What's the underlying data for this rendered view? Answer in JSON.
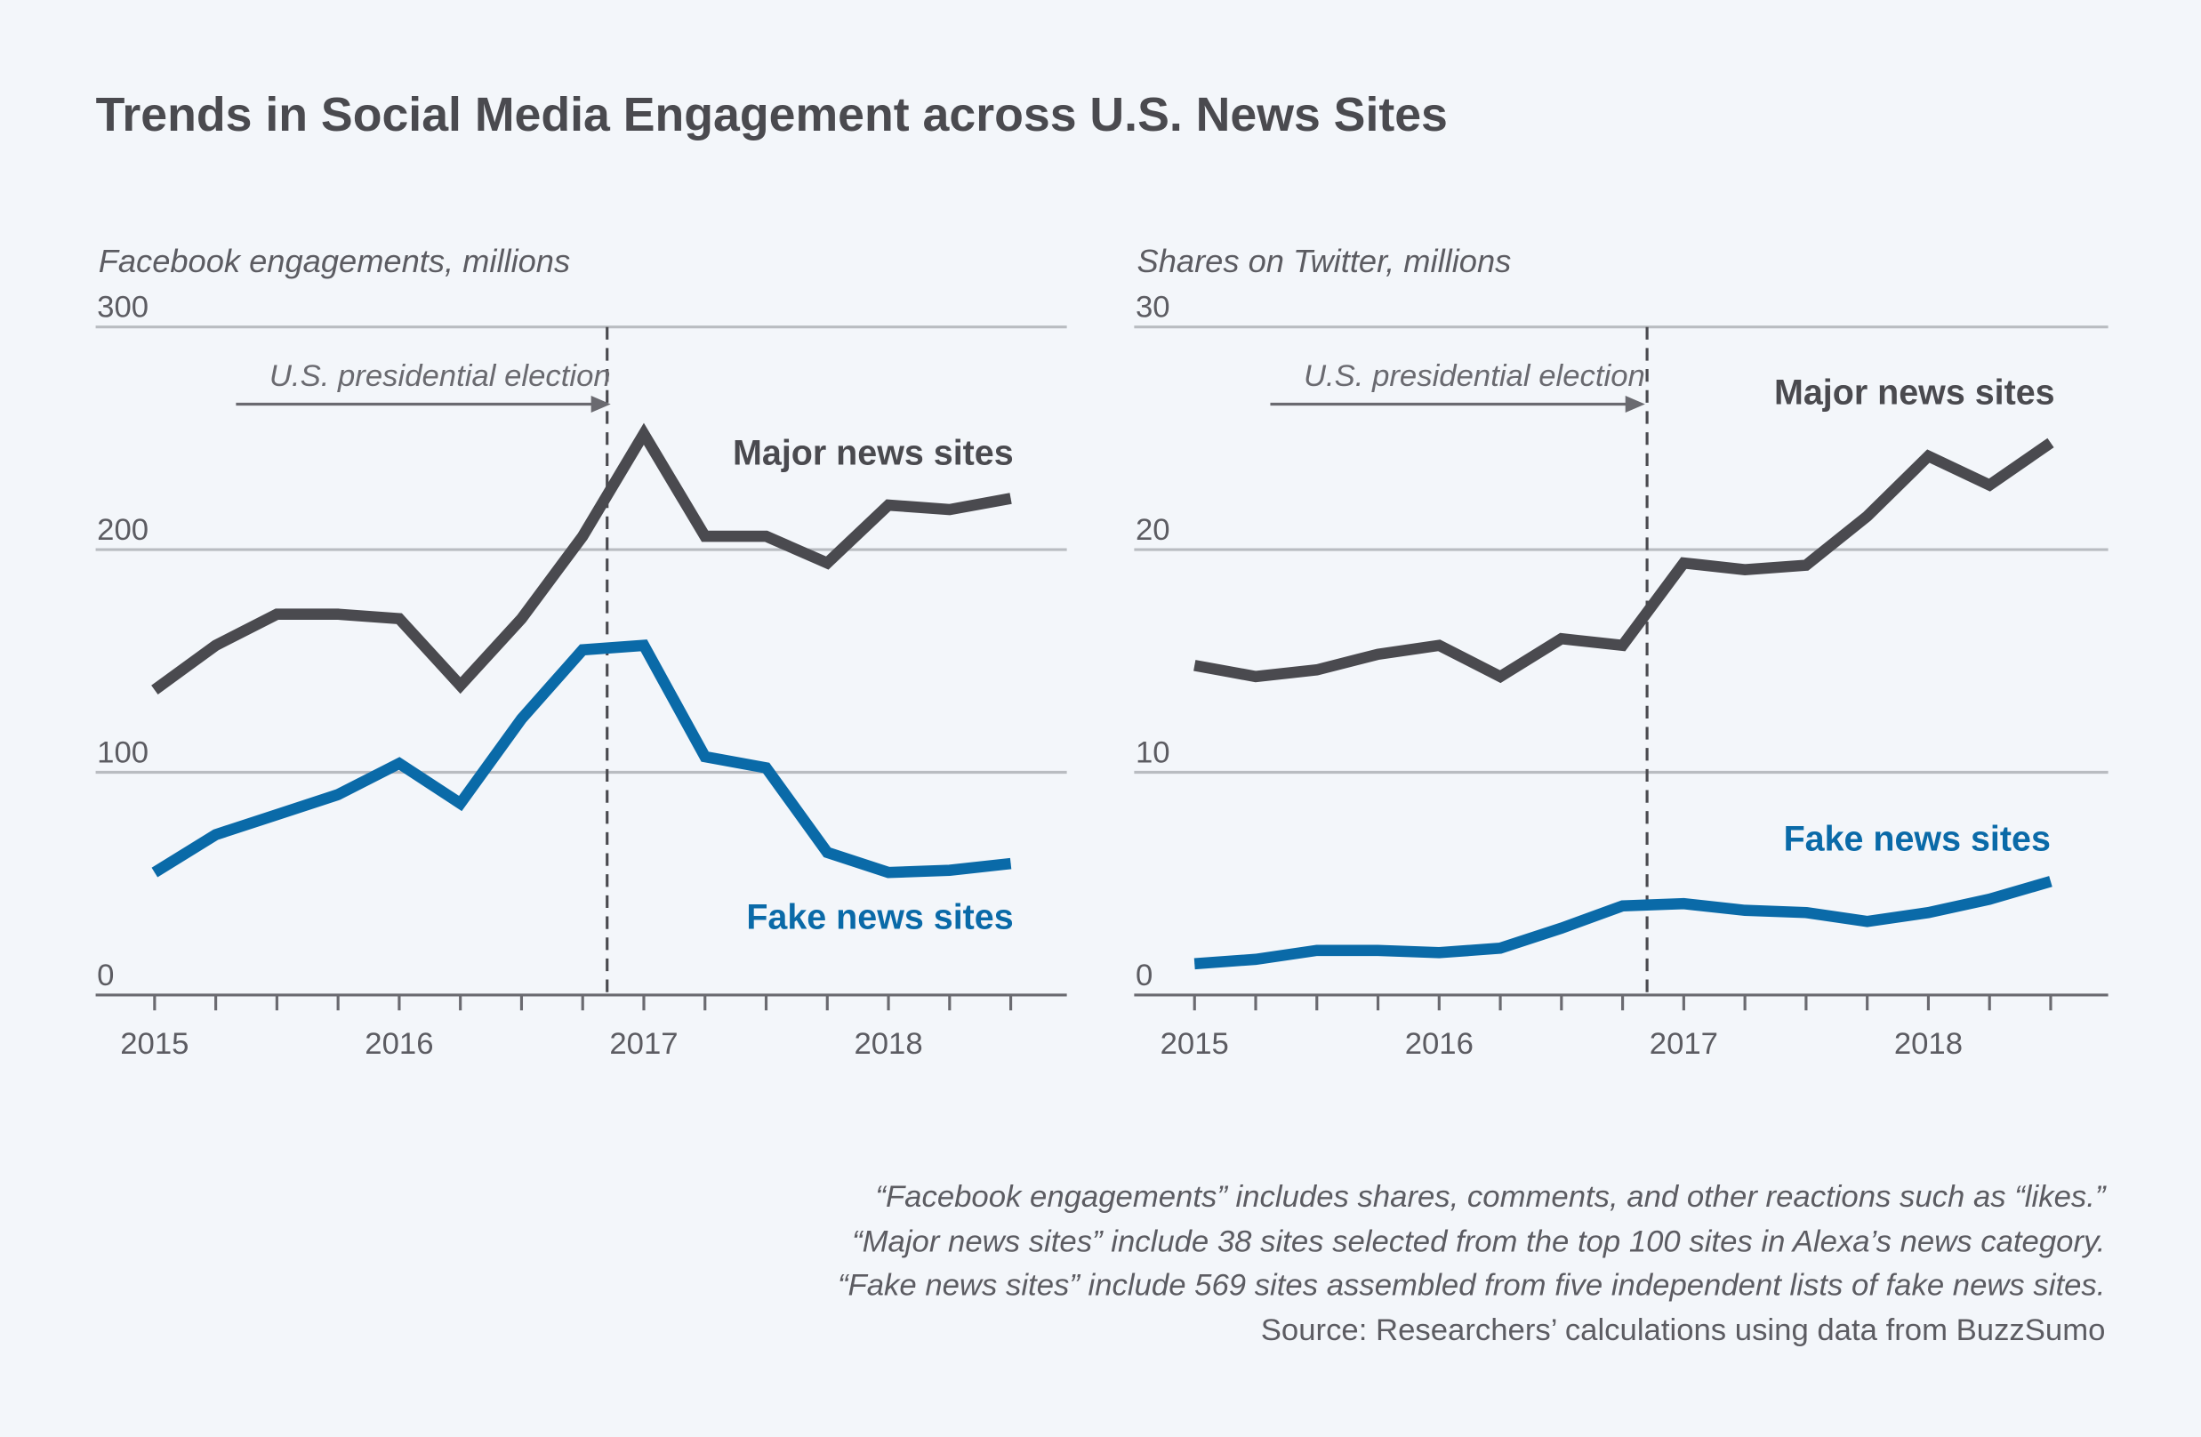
{
  "title": "Trends in Social Media Engagement across U.S. News Sites",
  "colors": {
    "background": "#f3f6fa",
    "major": "#4a4a4f",
    "fake": "#0a6aa8",
    "grid": "#b9bcc1"
  },
  "chart_data": [
    {
      "type": "line",
      "ylabel": "Facebook engagements, millions",
      "ylim": [
        0,
        300
      ],
      "yticks": [
        "0",
        "100",
        "200",
        "300"
      ],
      "xticks": [
        "2015",
        "2016",
        "2017",
        "2018"
      ],
      "xlim": [
        2015,
        2018.75
      ],
      "grid": true,
      "annotation": {
        "text": "U.S. presidential election",
        "x": 2016.85
      },
      "x": [
        2015,
        2015.25,
        2015.5,
        2015.75,
        2016,
        2016.25,
        2016.5,
        2016.75,
        2017,
        2017.25,
        2017.5,
        2017.75,
        2018,
        2018.25,
        2018.5
      ],
      "series": [
        {
          "name": "Major news sites",
          "color": "#4a4a4f",
          "values": [
            137,
            157,
            171,
            171,
            169,
            139,
            169,
            206,
            252,
            206,
            206,
            194,
            220,
            218,
            223
          ]
        },
        {
          "name": "Fake news sites",
          "color": "#0a6aa8",
          "values": [
            55,
            72,
            81,
            90,
            104,
            86,
            124,
            155,
            157,
            107,
            102,
            64,
            55,
            56,
            59
          ]
        }
      ]
    },
    {
      "type": "line",
      "ylabel": "Shares on Twitter, millions",
      "ylim": [
        0,
        30
      ],
      "yticks": [
        "0",
        "10",
        "20",
        "30"
      ],
      "xticks": [
        "2015",
        "2016",
        "2017",
        "2018"
      ],
      "xlim": [
        2015,
        2018.75
      ],
      "grid": true,
      "annotation": {
        "text": "U.S. presidential election",
        "x": 2016.85
      },
      "x": [
        2015,
        2015.25,
        2015.5,
        2015.75,
        2016,
        2016.25,
        2016.5,
        2016.75,
        2017,
        2017.25,
        2017.5,
        2017.75,
        2018,
        2018.25,
        2018.5
      ],
      "series": [
        {
          "name": "Major news sites",
          "color": "#4a4a4f",
          "values": [
            14.8,
            14.3,
            14.6,
            15.3,
            15.7,
            14.3,
            16.0,
            15.7,
            19.4,
            19.1,
            19.3,
            21.5,
            24.2,
            22.9,
            24.8
          ]
        },
        {
          "name": "Fake news sites",
          "color": "#0a6aa8",
          "values": [
            1.4,
            1.6,
            2.0,
            2.0,
            1.9,
            2.1,
            3.0,
            4.0,
            4.1,
            3.8,
            3.7,
            3.3,
            3.7,
            4.3,
            5.1
          ]
        }
      ]
    }
  ],
  "notes": [
    "“Facebook engagements” includes shares, comments, and other reactions such as “likes.”",
    "“Major news sites” include 38 sites selected from the top 100 sites in Alexa’s news category.",
    "“Fake news sites” include 569 sites assembled from five independent lists of fake news sites."
  ],
  "source": "Source: Researchers’ calculations using data from BuzzSumo"
}
